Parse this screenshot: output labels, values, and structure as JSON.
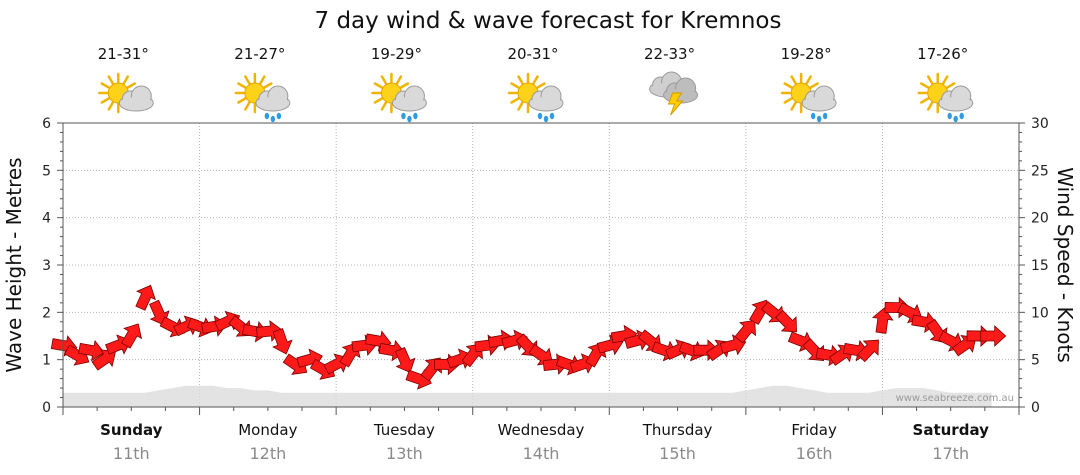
{
  "chart_data": {
    "type": "area",
    "title": "7 day wind & wave forecast for Kremnos",
    "ylabel_left": "Wave Height - Metres",
    "ylabel_right": "Wind Speed - Knots",
    "ylim_left": [
      0,
      6
    ],
    "ylim_right": [
      0,
      30
    ],
    "yticks_left": [
      "0",
      "1",
      "2",
      "3",
      "4",
      "5",
      "6"
    ],
    "yticks_right": [
      "0",
      "5",
      "10",
      "15",
      "20",
      "25",
      "30"
    ],
    "grid": true,
    "credit": "www.seabreeze.com.au",
    "days": [
      {
        "day": "Sunday",
        "date": "11th",
        "temp": "21-31°",
        "icon": "sun-cloud-icon",
        "bold": true
      },
      {
        "day": "Monday",
        "date": "12th",
        "temp": "21-27°",
        "icon": "sun-cloud-rain-icon",
        "bold": false
      },
      {
        "day": "Tuesday",
        "date": "13th",
        "temp": "19-29°",
        "icon": "sun-cloud-rain-icon",
        "bold": false
      },
      {
        "day": "Wednesday",
        "date": "14th",
        "temp": "20-31°",
        "icon": "sun-cloud-rain-icon",
        "bold": false
      },
      {
        "day": "Thursday",
        "date": "15th",
        "temp": "22-33°",
        "icon": "storm-icon",
        "bold": false
      },
      {
        "day": "Friday",
        "date": "16th",
        "temp": "19-28°",
        "icon": "sun-cloud-rain-icon",
        "bold": false
      },
      {
        "day": "Saturday",
        "date": "17th",
        "temp": "17-26°",
        "icon": "sun-cloud-rain-icon",
        "bold": true
      }
    ],
    "series": [
      {
        "name": "Wind Speed (knots)",
        "color": "#ff1a1a",
        "stroke": "#7a0000",
        "x": [
          0,
          0.1,
          0.2,
          0.3,
          0.4,
          0.5,
          0.6,
          0.7,
          0.8,
          0.9,
          1,
          1.1,
          1.2,
          1.3,
          1.4,
          1.5,
          1.6,
          1.7,
          1.8,
          1.9,
          2,
          2.1,
          2.2,
          2.3,
          2.4,
          2.5,
          2.6,
          2.7,
          2.8,
          2.9,
          3,
          3.1,
          3.2,
          3.3,
          3.4,
          3.5,
          3.6,
          3.7,
          3.8,
          3.9,
          4,
          4.1,
          4.2,
          4.3,
          4.4,
          4.5,
          4.6,
          4.7,
          4.8,
          4.9,
          5,
          5.1,
          5.2,
          5.3,
          5.4,
          5.5,
          5.6,
          5.7,
          5.8,
          5.9,
          6,
          6.1,
          6.2,
          6.3,
          6.4,
          6.5,
          6.6,
          6.7,
          6.8
        ],
        "values": [
          6.5,
          5.5,
          6,
          5,
          6.5,
          7.5,
          11.5,
          10,
          8.5,
          8.5,
          8.5,
          8.5,
          9,
          8.5,
          8,
          8,
          7,
          4.5,
          5,
          4,
          4.5,
          5.5,
          6.5,
          7,
          6,
          5,
          3,
          4,
          4.5,
          5,
          5.5,
          6.5,
          7,
          7,
          6.5,
          5.5,
          4.5,
          4.5,
          4.5,
          5.5,
          6.5,
          7.5,
          7,
          7,
          6,
          6,
          6,
          6,
          6,
          6.5,
          8,
          10,
          10,
          9,
          7,
          6,
          5.5,
          5.5,
          6,
          6,
          9,
          10.5,
          10,
          9,
          8,
          7,
          6.5,
          7.5,
          7.5
        ]
      },
      {
        "name": "Wave Height (metres)",
        "color": "#dcdcdc",
        "values": [
          0.3,
          0.3,
          0.3,
          0.3,
          0.3,
          0.3,
          0.3,
          0.35,
          0.4,
          0.45,
          0.45,
          0.45,
          0.4,
          0.4,
          0.35,
          0.35,
          0.3,
          0.3,
          0.3,
          0.3,
          0.3,
          0.3,
          0.3,
          0.3,
          0.3,
          0.3,
          0.3,
          0.3,
          0.3,
          0.3,
          0.3,
          0.3,
          0.3,
          0.3,
          0.3,
          0.3,
          0.3,
          0.3,
          0.3,
          0.3,
          0.3,
          0.3,
          0.3,
          0.3,
          0.3,
          0.3,
          0.3,
          0.3,
          0.3,
          0.3,
          0.35,
          0.4,
          0.45,
          0.45,
          0.4,
          0.35,
          0.3,
          0.3,
          0.3,
          0.3,
          0.35,
          0.4,
          0.4,
          0.4,
          0.35,
          0.3,
          0.3,
          0.3,
          0.3
        ]
      }
    ]
  }
}
